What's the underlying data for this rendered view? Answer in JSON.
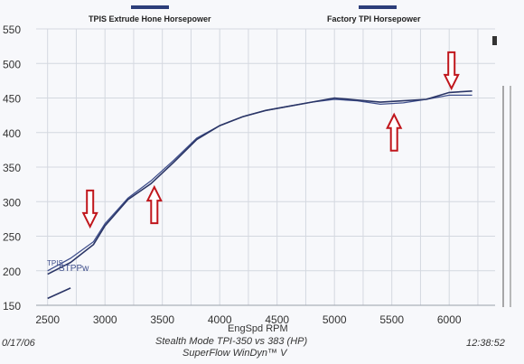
{
  "legend": [
    {
      "label": "TPIS Extrude Hone Horsepower",
      "color": "#2c3e7a"
    },
    {
      "label": "Factory TPI Horsepower",
      "color": "#2c3e7a"
    }
  ],
  "series_labels": {
    "tpis": "TPIS",
    "stppw": "STPPw"
  },
  "footer": {
    "date": "0/17/06",
    "line1": "Stealth Mode TPI-350 vs 383  (HP)",
    "line2": "SuperFlow WinDyn™ V",
    "time": "12:38:52"
  },
  "chart_data": {
    "type": "line",
    "xlabel": "EngSpd  RPM",
    "ylabel": "",
    "xlim": [
      2400,
      6400
    ],
    "ylim": [
      150,
      550
    ],
    "xticks": [
      2500,
      3000,
      3500,
      4000,
      4500,
      5000,
      5500,
      6000
    ],
    "yticks": [
      150,
      200,
      250,
      300,
      350,
      400,
      450,
      500,
      550
    ],
    "grid": true,
    "series": [
      {
        "name": "TPIS Extrude Hone Horsepower",
        "color": "#3f4f8c",
        "x": [
          2500,
          2700,
          2900,
          3000,
          3200,
          3400,
          3600,
          3800,
          4000,
          4200,
          4400,
          4600,
          4800,
          5000,
          5200,
          5400,
          5600,
          5800,
          6000,
          6200
        ],
        "y": [
          200,
          218,
          242,
          268,
          305,
          330,
          360,
          392,
          410,
          423,
          432,
          438,
          444,
          448,
          446,
          441,
          443,
          448,
          454,
          454
        ]
      },
      {
        "name": "Factory TPI Horsepower",
        "color": "#2a3566",
        "x": [
          2500,
          2700,
          2900,
          3000,
          3200,
          3400,
          3600,
          3800,
          4000,
          4200,
          4400,
          4600,
          4800,
          5000,
          5200,
          5400,
          5600,
          5800,
          6000,
          6200
        ],
        "y": [
          195,
          212,
          238,
          265,
          303,
          326,
          357,
          390,
          410,
          423,
          432,
          438,
          444,
          450,
          447,
          444,
          446,
          448,
          458,
          460
        ]
      }
    ],
    "annotations": [
      {
        "type": "arrow-down",
        "x": 2870,
        "y": 290
      },
      {
        "type": "arrow-up",
        "x": 3430,
        "y": 295
      },
      {
        "type": "arrow-up",
        "x": 5520,
        "y": 400
      },
      {
        "type": "arrow-down",
        "x": 6020,
        "y": 490
      }
    ]
  }
}
